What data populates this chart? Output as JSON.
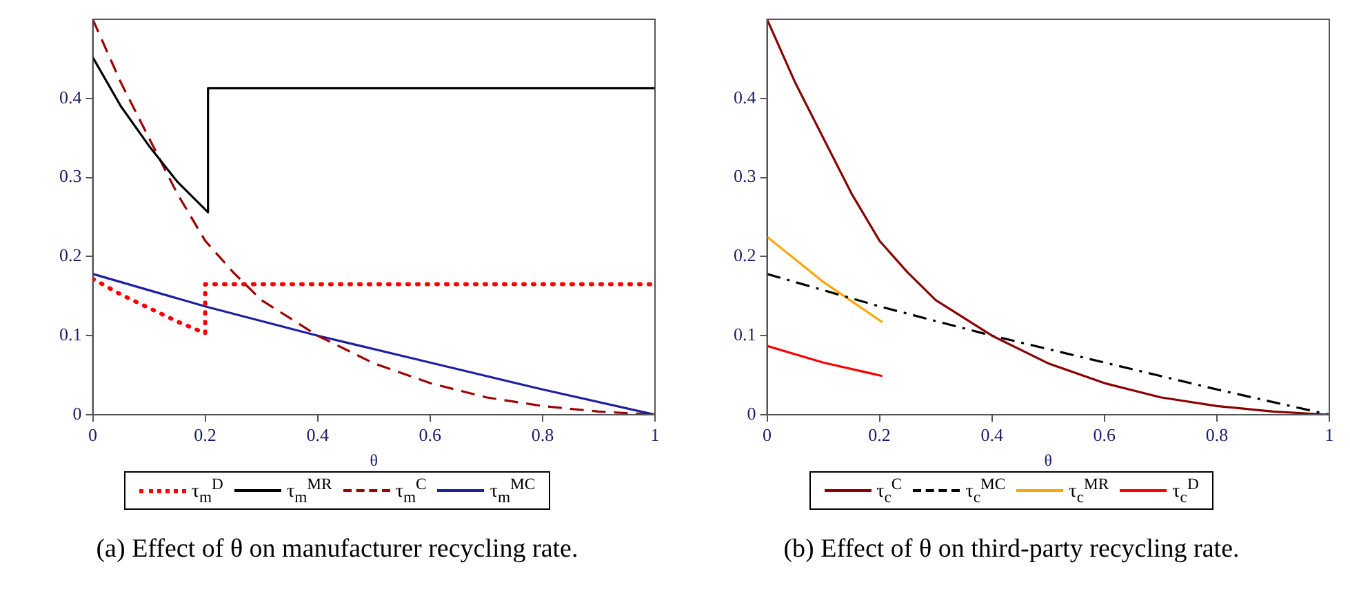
{
  "chart_data": [
    {
      "type": "line",
      "title": "(a) Effect of θ on manufacturer recycling rate.",
      "xlabel": "θ",
      "xlim": [
        0,
        1
      ],
      "xticks": [
        0,
        0.2,
        0.4,
        0.6,
        0.8,
        1
      ],
      "ylim": [
        0,
        0.5
      ],
      "yticks": [
        0,
        0.1,
        0.2,
        0.3,
        0.4
      ],
      "grid": false,
      "legend": "bottom",
      "series": [
        {
          "name": "τ$_{m}$$^{D}$",
          "color": "#ff0000",
          "line_style": "dotted",
          "x": [
            0,
            0.05,
            0.1,
            0.15,
            0.2,
            0.2,
            1
          ],
          "values": [
            0.172,
            0.152,
            0.135,
            0.118,
            0.103,
            0.165,
            0.165
          ]
        },
        {
          "name": "τ$_{m}$$^{MR}$",
          "color": "#000000",
          "line_style": "solid",
          "x": [
            0,
            0.05,
            0.1,
            0.15,
            0.205,
            0.205,
            1
          ],
          "values": [
            0.452,
            0.39,
            0.34,
            0.295,
            0.256,
            0.413,
            0.413
          ]
        },
        {
          "name": "τ$_{m}$$^{C}$",
          "color": "#a00000",
          "line_style": "dashed",
          "x": [
            0,
            0.05,
            0.1,
            0.15,
            0.2,
            0.25,
            0.3,
            0.4,
            0.5,
            0.6,
            0.7,
            0.8,
            0.9,
            1
          ],
          "values": [
            0.5,
            0.42,
            0.35,
            0.28,
            0.22,
            0.18,
            0.145,
            0.1,
            0.065,
            0.04,
            0.022,
            0.011,
            0.004,
            0
          ]
        },
        {
          "name": "τ$_{m}$$^{MC}$",
          "color": "#1f1f9f",
          "line_style": "solid",
          "x": [
            0,
            0.2,
            0.4,
            0.6,
            0.8,
            1
          ],
          "values": [
            0.178,
            0.137,
            0.1,
            0.066,
            0.032,
            0
          ]
        }
      ]
    },
    {
      "type": "line",
      "title": "(b) Effect of θ on third-party recycling rate.",
      "xlabel": "θ",
      "xlim": [
        0,
        1
      ],
      "xticks": [
        0,
        0.2,
        0.4,
        0.6,
        0.8,
        1
      ],
      "ylim": [
        0,
        0.5
      ],
      "yticks": [
        0,
        0.1,
        0.2,
        0.3,
        0.4
      ],
      "grid": false,
      "legend": "bottom",
      "series": [
        {
          "name": "τ$_{c}$$^{C}$",
          "color": "#8b0000",
          "line_style": "solid",
          "x": [
            0,
            0.05,
            0.1,
            0.15,
            0.2,
            0.25,
            0.3,
            0.4,
            0.5,
            0.6,
            0.7,
            0.8,
            0.9,
            1
          ],
          "values": [
            0.5,
            0.42,
            0.35,
            0.28,
            0.22,
            0.18,
            0.145,
            0.1,
            0.065,
            0.04,
            0.022,
            0.011,
            0.004,
            0
          ]
        },
        {
          "name": "τ$_{c}$$^{MC}$",
          "color": "#000000",
          "line_style": "dashdot",
          "x": [
            0,
            0.2,
            0.4,
            0.6,
            0.8,
            1
          ],
          "values": [
            0.178,
            0.137,
            0.1,
            0.066,
            0.032,
            0
          ]
        },
        {
          "name": "τ$_{c}$$^{MR}$",
          "color": "#ffa500",
          "line_style": "solid",
          "x": [
            0,
            0.1,
            0.205
          ],
          "values": [
            0.225,
            0.168,
            0.117
          ]
        },
        {
          "name": "τ$_{c}$$^{D}$",
          "color": "#ff0000",
          "line_style": "solid",
          "x": [
            0,
            0.1,
            0.205
          ],
          "values": [
            0.087,
            0.066,
            0.049
          ]
        }
      ]
    }
  ]
}
